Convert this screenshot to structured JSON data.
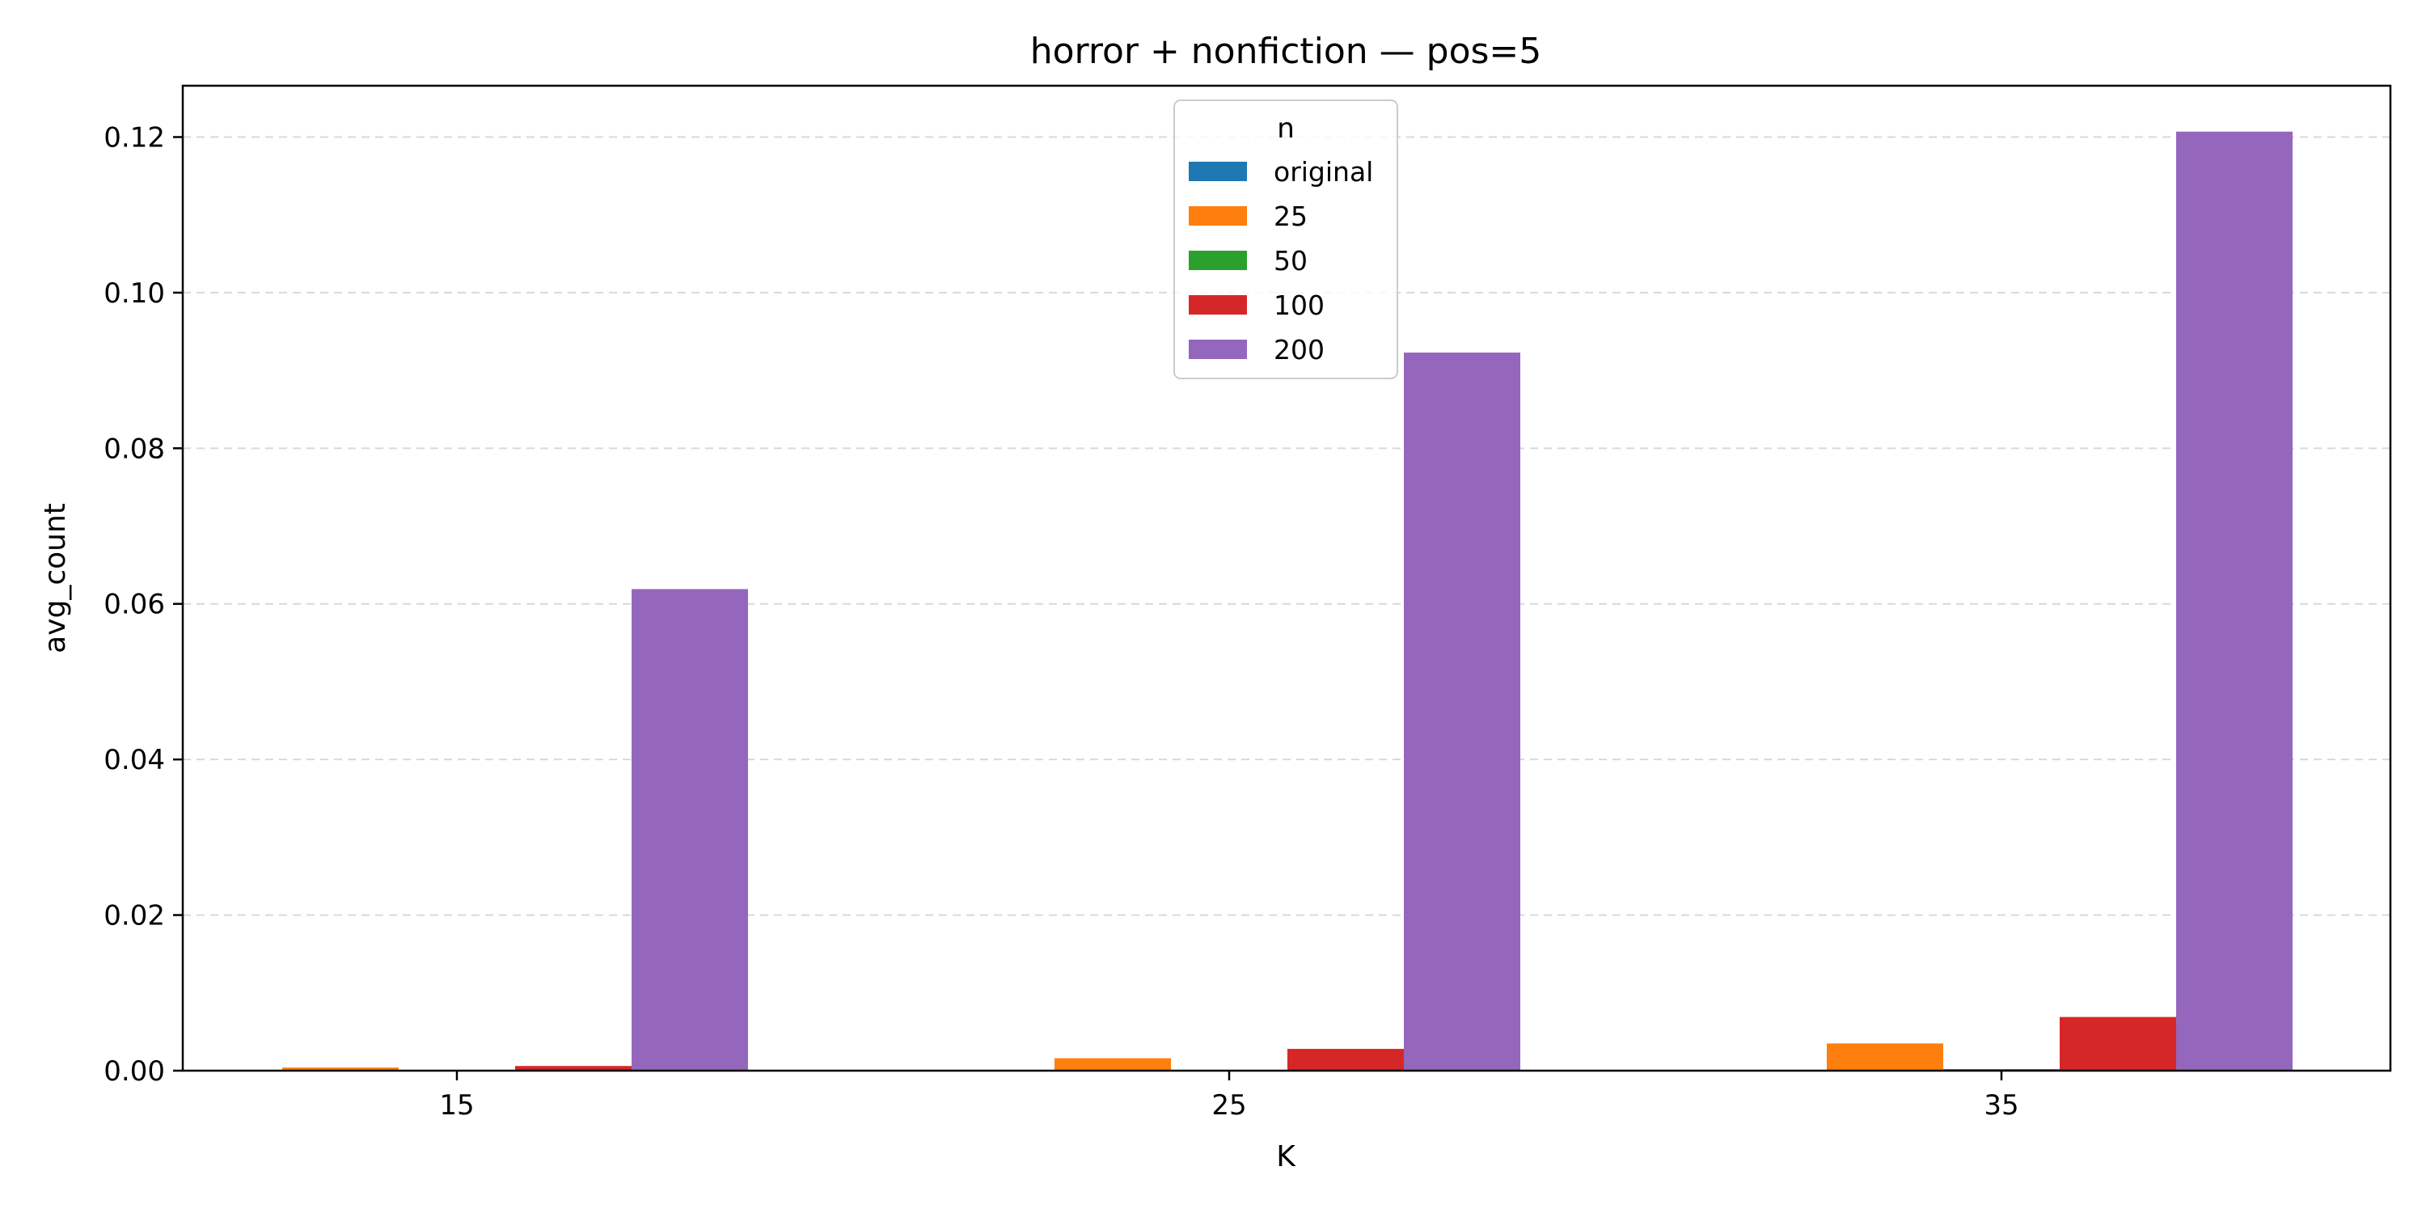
{
  "chart_data": {
    "type": "bar",
    "title": "horror + nonfiction — pos=5",
    "xlabel": "K",
    "ylabel": "avg_count",
    "categories": [
      "15",
      "25",
      "35"
    ],
    "ylim": [
      0,
      0.1266
    ],
    "yticks": [
      0.0,
      0.02,
      0.04,
      0.06,
      0.08,
      0.1,
      0.12
    ],
    "ytick_labels": [
      "0.00",
      "0.02",
      "0.04",
      "0.06",
      "0.08",
      "0.10",
      "0.12"
    ],
    "grid": "y-dashed",
    "legend": {
      "title": "n",
      "placement": "top-center"
    },
    "series": [
      {
        "name": "original",
        "color": "#1f77b4",
        "values": [
          0.0,
          0.0,
          0.0
        ]
      },
      {
        "name": "25",
        "color": "#ff7f0e",
        "values": [
          0.0004,
          0.0016,
          0.0035
        ]
      },
      {
        "name": "50",
        "color": "#2ca02c",
        "values": [
          0.0,
          0.0,
          0.0002
        ]
      },
      {
        "name": "100",
        "color": "#d62728",
        "values": [
          0.0006,
          0.0028,
          0.0069
        ]
      },
      {
        "name": "200",
        "color": "#9467bd",
        "values": [
          0.0619,
          0.0923,
          0.1207
        ]
      }
    ]
  }
}
